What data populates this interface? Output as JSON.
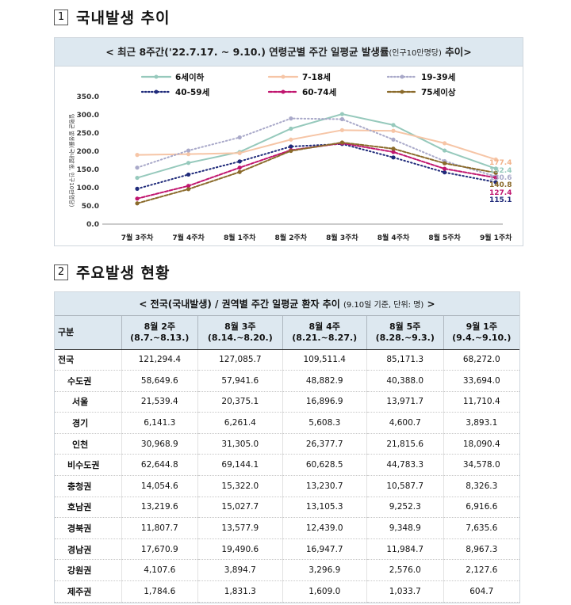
{
  "section1": {
    "num": "1",
    "title": "국내발생 추이"
  },
  "section2": {
    "num": "2",
    "title": "주요발생 현황"
  },
  "chart_header": {
    "main": "< 최근 8주간('22.7.17. ~ 9.10.) 연령군별 주간 일평균 발생률",
    "small": "(인구10만명당)",
    "tail": " 추이>"
  },
  "chart_data": {
    "type": "line",
    "ylabel": "일평균 발생률(국내발생, 인구10만명당)",
    "ylim": [
      0,
      350
    ],
    "yticks": [
      "0.0",
      "50.0",
      "100.0",
      "150.0",
      "200.0",
      "250.0",
      "300.0",
      "350.0"
    ],
    "categories": [
      "7월 3주차",
      "7월 4주차",
      "8월 1주차",
      "8월 2주차",
      "8월 3주차",
      "8월 4주차",
      "8월 5주차",
      "9월 1주차"
    ],
    "series": [
      {
        "name": "6세이하",
        "color": "#96c9bc",
        "dash": "solid",
        "values": [
          127,
          168,
          198,
          262,
          302,
          272,
          202,
          152.4
        ]
      },
      {
        "name": "7-18세",
        "color": "#f6c5a6",
        "dash": "solid",
        "values": [
          190,
          192,
          195,
          232,
          258,
          256,
          222,
          177.4
        ]
      },
      {
        "name": "19-39세",
        "color": "#a9a9c9",
        "dash": "dot",
        "values": [
          155,
          202,
          238,
          290,
          288,
          232,
          173,
          130.6
        ]
      },
      {
        "name": "40-59세",
        "color": "#1f2a7a",
        "dash": "dot",
        "values": [
          97,
          136,
          172,
          213,
          220,
          183,
          142,
          115.1
        ]
      },
      {
        "name": "60-74세",
        "color": "#c0146e",
        "dash": "dash",
        "values": [
          70,
          105,
          155,
          203,
          222,
          198,
          152,
          127.4
        ]
      },
      {
        "name": "75세이상",
        "color": "#8a6a2a",
        "dash": "dash",
        "values": [
          57,
          96,
          143,
          201,
          224,
          207,
          167,
          140.8
        ]
      }
    ],
    "end_labels": [
      "177.4",
      "152.4",
      "130.6",
      "140.8",
      "127.4",
      "115.1"
    ]
  },
  "table": {
    "header_main": "< 전국(국내발생) / 권역별 주간 일평균 환자 추이 ",
    "header_small": "(9.10일 기준, 단위: 명)",
    "header_tail": " >",
    "col0": "구분",
    "columns": [
      {
        "line1": "8월 2주",
        "line2": "(8.7.~8.13.)"
      },
      {
        "line1": "8월 3주",
        "line2": "(8.14.~8.20.)"
      },
      {
        "line1": "8월 4주",
        "line2": "(8.21.~8.27.)"
      },
      {
        "line1": "8월 5주",
        "line2": "(8.28.~9.3.)"
      },
      {
        "line1": "9월 1주",
        "line2": "(9.4.~9.10.)"
      }
    ],
    "rows": [
      {
        "label": "전국",
        "level": 0,
        "values": [
          "121,294.4",
          "127,085.7",
          "109,511.4",
          "85,171.3",
          "68,272.0"
        ]
      },
      {
        "label": "수도권",
        "level": 1,
        "values": [
          "58,649.6",
          "57,941.6",
          "48,882.9",
          "40,388.0",
          "33,694.0"
        ]
      },
      {
        "label": "서울",
        "level": 2,
        "values": [
          "21,539.4",
          "20,375.1",
          "16,896.9",
          "13,971.7",
          "11,710.4"
        ]
      },
      {
        "label": "경기",
        "level": 2,
        "values": [
          "6,141.3",
          "6,261.4",
          "5,608.3",
          "4,600.7",
          "3,893.1"
        ]
      },
      {
        "label": "인천",
        "level": 2,
        "values": [
          "30,968.9",
          "31,305.0",
          "26,377.7",
          "21,815.6",
          "18,090.4"
        ]
      },
      {
        "label": "비수도권",
        "level": 1,
        "values": [
          "62,644.8",
          "69,144.1",
          "60,628.5",
          "44,783.3",
          "34,578.0"
        ]
      },
      {
        "label": "충청권",
        "level": 1,
        "values": [
          "14,054.6",
          "15,322.0",
          "13,230.7",
          "10,587.7",
          "8,326.3"
        ]
      },
      {
        "label": "호남권",
        "level": 1,
        "values": [
          "13,219.6",
          "15,027.7",
          "13,105.3",
          "9,252.3",
          "6,916.6"
        ]
      },
      {
        "label": "경북권",
        "level": 1,
        "values": [
          "11,807.7",
          "13,577.9",
          "12,439.0",
          "9,348.9",
          "7,635.6"
        ]
      },
      {
        "label": "경남권",
        "level": 1,
        "values": [
          "17,670.9",
          "19,490.6",
          "16,947.7",
          "11,984.7",
          "8,967.3"
        ]
      },
      {
        "label": "강원권",
        "level": 1,
        "values": [
          "4,107.6",
          "3,894.7",
          "3,296.9",
          "2,576.0",
          "2,127.6"
        ]
      },
      {
        "label": "제주권",
        "level": 1,
        "values": [
          "1,784.6",
          "1,831.3",
          "1,609.0",
          "1,033.7",
          "604.7"
        ]
      }
    ]
  }
}
